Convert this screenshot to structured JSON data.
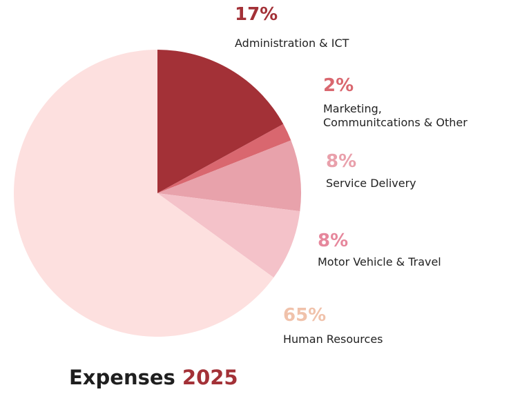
{
  "chart_data": {
    "type": "pie",
    "title": {
      "text": "Expenses",
      "highlight": "2025",
      "color": "#1f1f1f",
      "highlight_color": "#a33137"
    },
    "categories": [
      "Administration & ICT",
      "Marketing,\nCommunitcations & Other",
      "Service Delivery",
      "Motor Vehicle & Travel",
      "Human Resources"
    ],
    "values": [
      17,
      2,
      8,
      8,
      65
    ],
    "value_labels": [
      "17%",
      "2%",
      "8%",
      "8%",
      "65%"
    ],
    "colors": [
      "#a33137",
      "#d9676f",
      "#e8a2ab",
      "#f4c2c9",
      "#fde0df"
    ],
    "label_colors": [
      "#a33137",
      "#d9676f",
      "#e9a0ab",
      "#e6879c",
      "#f0c2ab"
    ]
  }
}
